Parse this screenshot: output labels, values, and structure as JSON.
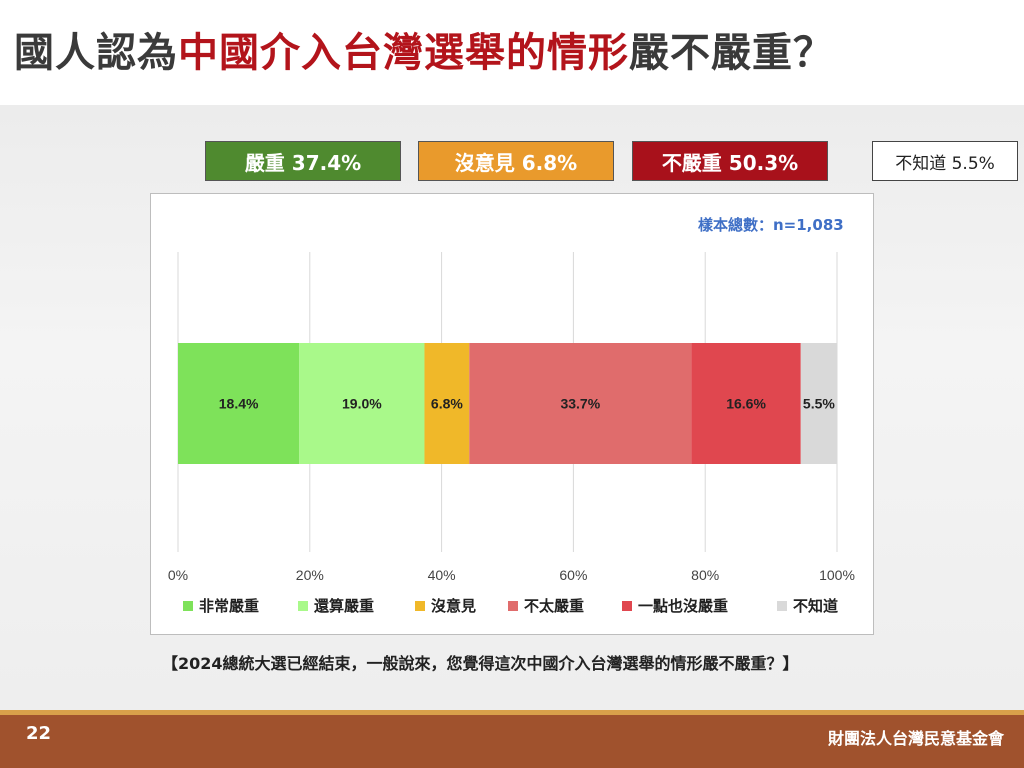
{
  "slide": {
    "title_part1": "國人認為",
    "title_highlight": "中國介入台灣選舉的情形",
    "title_part2": "嚴不嚴重？",
    "page_number": "22",
    "organization": "財團法人台灣民意基金會",
    "question": "【2024總統大選已經結束，一般說來，您覺得這次中國介入台灣選舉的情形嚴不嚴重？】"
  },
  "summary": {
    "severe": "嚴重 37.4%",
    "no_opinion": "沒意見 6.8%",
    "not_severe": "不嚴重 50.3%",
    "unknown": "不知道 5.5%"
  },
  "sample_size": "樣本總數：n=1,083",
  "colors": {
    "very_severe": "#7ee25a",
    "fairly_severe": "#a9f98a",
    "no_opinion": "#f0b829",
    "not_very_severe": "#e06c6c",
    "not_at_all": "#e0474f",
    "unknown": "#d9d9d9",
    "title_highlight": "#b3141b"
  },
  "chart_data": {
    "type": "bar",
    "orientation": "horizontal-stacked",
    "xlim": [
      0,
      100
    ],
    "x_ticks": [
      "0%",
      "20%",
      "40%",
      "60%",
      "80%",
      "100%"
    ],
    "grid": true,
    "legend_position": "bottom",
    "series": [
      {
        "name": "非常嚴重",
        "value": 18.4,
        "label": "18.4%",
        "color": "#7ee25a"
      },
      {
        "name": "還算嚴重",
        "value": 19.0,
        "label": "19.0%",
        "color": "#a9f98a"
      },
      {
        "name": "沒意見",
        "value": 6.8,
        "label": "6.8%",
        "color": "#f0b829"
      },
      {
        "name": "不太嚴重",
        "value": 33.7,
        "label": "33.7%",
        "color": "#e06c6c"
      },
      {
        "name": "一點也沒嚴重",
        "value": 16.6,
        "label": "16.6%",
        "color": "#e0474f"
      },
      {
        "name": "不知道",
        "value": 5.5,
        "label": "5.5%",
        "color": "#d9d9d9"
      }
    ]
  }
}
